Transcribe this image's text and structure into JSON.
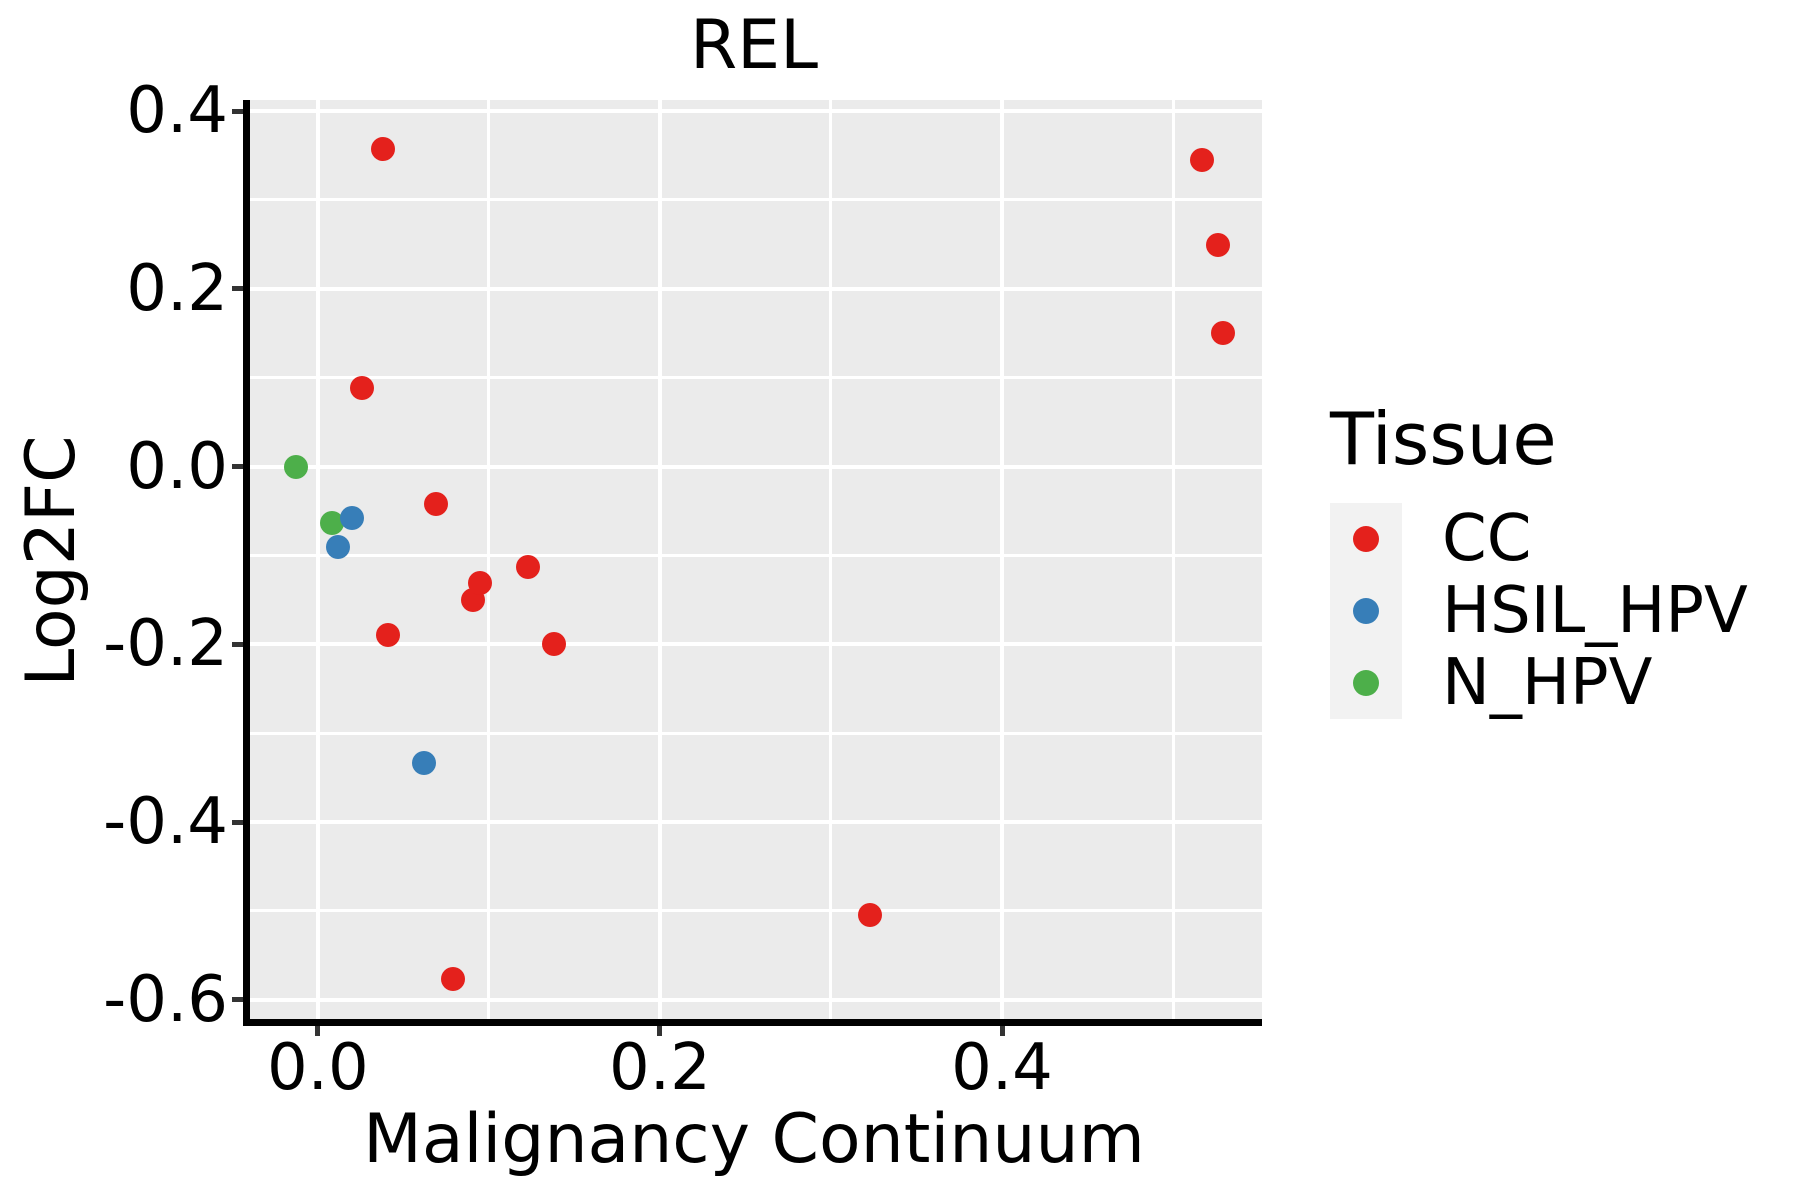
{
  "chart_data": {
    "type": "scatter",
    "title": "REL",
    "xlabel": "Malignancy Continuum",
    "ylabel": "Log2FC",
    "grid": true,
    "panel_background": "#EBEBEB",
    "gridline_color": "#FFFFFF",
    "x_axis": {
      "range": [
        -0.042,
        0.552
      ],
      "ticks": [
        0.0,
        0.2,
        0.4
      ],
      "tick_labels": [
        "0.0",
        "0.2",
        "0.4"
      ],
      "minor_ticks": [
        0.1,
        0.3,
        0.5
      ]
    },
    "y_axis": {
      "range": [
        -0.625,
        0.4125
      ],
      "ticks": [
        0.4,
        0.2,
        0.0,
        -0.2,
        -0.4,
        -0.6
      ],
      "tick_labels": [
        "0.4",
        "0.2",
        "0.0",
        "-0.2",
        "-0.4",
        "-0.6"
      ],
      "minor_ticks": [
        0.3,
        0.1,
        -0.1,
        -0.3,
        -0.5
      ]
    },
    "legend": {
      "title": "Tissue",
      "position": "right",
      "key_background": "#F2F2F2",
      "entries": [
        {
          "label": "CC",
          "color": "#E4211C"
        },
        {
          "label": "HSIL_HPV",
          "color": "#377EB8"
        },
        {
          "label": "N_HPV",
          "color": "#4DAF4A"
        }
      ]
    },
    "point_radius_px": 12,
    "series": [
      {
        "name": "CC",
        "color": "#E4211C",
        "points": [
          [
            0.038,
            0.357
          ],
          [
            0.026,
            0.088
          ],
          [
            0.069,
            -0.042
          ],
          [
            0.091,
            -0.15
          ],
          [
            0.095,
            -0.131
          ],
          [
            0.123,
            -0.113
          ],
          [
            0.041,
            -0.189
          ],
          [
            0.138,
            -0.2
          ],
          [
            0.323,
            -0.505
          ],
          [
            0.079,
            -0.577
          ],
          [
            0.517,
            0.345
          ],
          [
            0.526,
            0.249
          ],
          [
            0.529,
            0.15
          ]
        ]
      },
      {
        "name": "HSIL_HPV",
        "color": "#377EB8",
        "points": [
          [
            0.02,
            -0.058
          ],
          [
            0.012,
            -0.09
          ],
          [
            0.062,
            -0.334
          ]
        ]
      },
      {
        "name": "N_HPV",
        "color": "#4DAF4A",
        "points": [
          [
            -0.013,
            -0.001
          ],
          [
            0.008,
            -0.063
          ]
        ]
      }
    ]
  }
}
